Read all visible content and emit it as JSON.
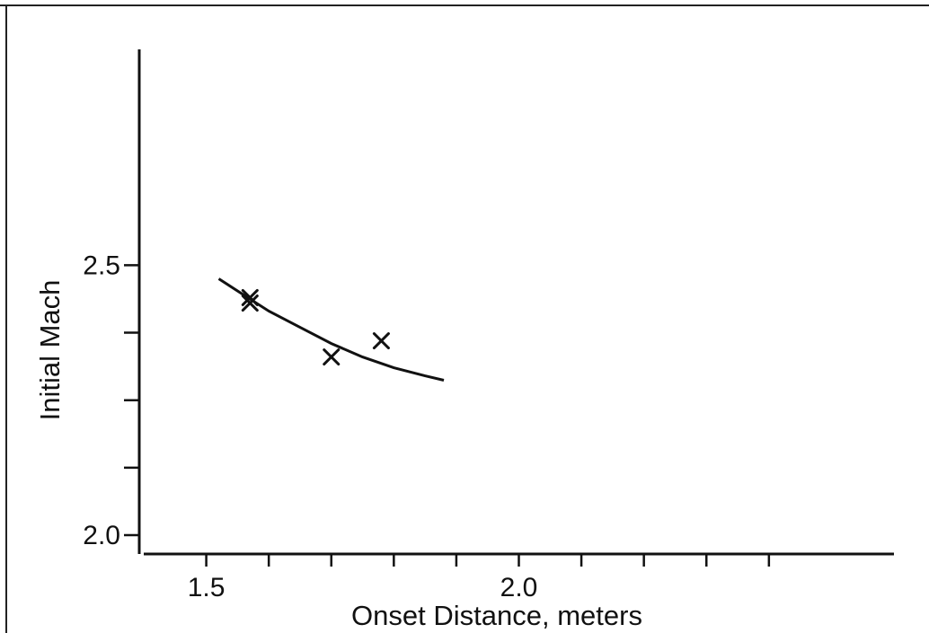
{
  "chart_data": {
    "type": "scatter",
    "xlabel": "Onset Distance, meters",
    "ylabel": "Initial Mach",
    "xlim": [
      1.4,
      2.6
    ],
    "ylim": [
      1.965,
      2.9
    ],
    "x_ticks": [
      {
        "value": 1.5,
        "label": "1.5"
      },
      {
        "value": 1.6,
        "label": ""
      },
      {
        "value": 1.7,
        "label": ""
      },
      {
        "value": 1.8,
        "label": ""
      },
      {
        "value": 1.9,
        "label": ""
      },
      {
        "value": 2.0,
        "label": "2.0"
      },
      {
        "value": 2.1,
        "label": ""
      },
      {
        "value": 2.2,
        "label": ""
      },
      {
        "value": 2.3,
        "label": ""
      },
      {
        "value": 2.4,
        "label": ""
      }
    ],
    "y_ticks": [
      {
        "value": 2.0,
        "label": "2.0"
      },
      {
        "value": 2.125,
        "label": ""
      },
      {
        "value": 2.25,
        "label": ""
      },
      {
        "value": 2.375,
        "label": ""
      },
      {
        "value": 2.5,
        "label": "2.5"
      }
    ],
    "series": [
      {
        "marker": "x",
        "points": [
          {
            "x": 1.57,
            "y": 2.44
          },
          {
            "x": 1.57,
            "y": 2.43
          },
          {
            "x": 1.7,
            "y": 2.33
          },
          {
            "x": 1.78,
            "y": 2.36
          }
        ]
      }
    ],
    "fit_curve": {
      "points": [
        {
          "x": 1.52,
          "y": 2.475
        },
        {
          "x": 1.56,
          "y": 2.445
        },
        {
          "x": 1.6,
          "y": 2.415
        },
        {
          "x": 1.65,
          "y": 2.385
        },
        {
          "x": 1.7,
          "y": 2.355
        },
        {
          "x": 1.75,
          "y": 2.33
        },
        {
          "x": 1.8,
          "y": 2.31
        },
        {
          "x": 1.85,
          "y": 2.295
        },
        {
          "x": 1.88,
          "y": 2.287
        }
      ]
    },
    "grid": false,
    "legend": "none"
  }
}
